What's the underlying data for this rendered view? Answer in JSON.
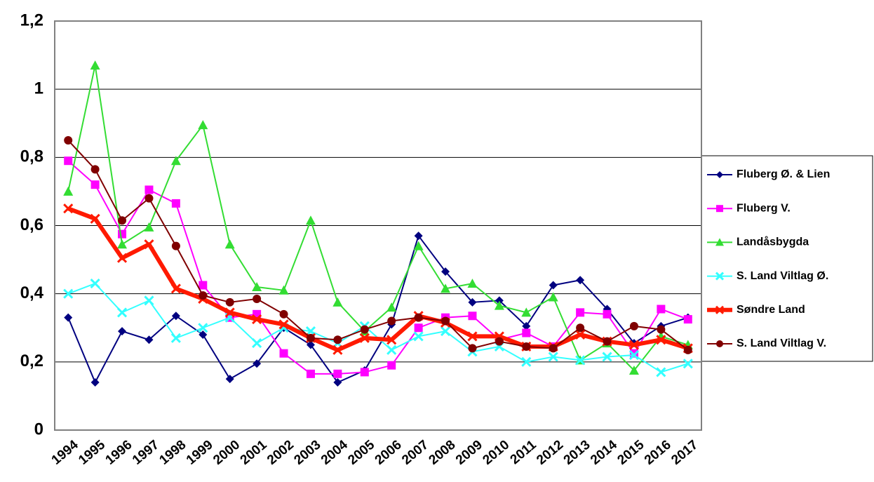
{
  "chart_data": {
    "type": "line",
    "categories": [
      "1994",
      "1995",
      "1996",
      "1997",
      "1998",
      "1999",
      "2000",
      "2001",
      "2002",
      "2003",
      "2004",
      "2005",
      "2006",
      "2007",
      "2008",
      "2009",
      "2010",
      "2011",
      "2012",
      "2013",
      "2014",
      "2015",
      "2016",
      "2017"
    ],
    "ylim": [
      0,
      1.2
    ],
    "yticks": [
      0,
      {
        "value": 0.2,
        "label": "0,2"
      },
      {
        "value": 0.4,
        "label": "0,4"
      },
      {
        "value": 0.6,
        "label": "0,6"
      },
      {
        "value": 0.8,
        "label": "0,8"
      },
      1,
      {
        "value": 1.2,
        "label": "1,2"
      }
    ],
    "grid": true,
    "legend": "right",
    "series": [
      {
        "name": "Fluberg Ø. & Lien",
        "color": "#000080",
        "marker": "diamond",
        "line_width": 2,
        "values": [
          0.33,
          0.14,
          0.29,
          0.265,
          0.335,
          0.28,
          0.15,
          0.195,
          0.3,
          0.25,
          0.14,
          0.175,
          0.31,
          0.57,
          0.465,
          0.375,
          0.38,
          0.305,
          0.425,
          0.44,
          0.355,
          0.255,
          0.305,
          0.33
        ]
      },
      {
        "name": "Fluberg V.",
        "color": "#ff00ff",
        "marker": "square",
        "line_width": 2,
        "values": [
          0.79,
          0.72,
          0.575,
          0.705,
          0.665,
          0.425,
          0.33,
          0.34,
          0.225,
          0.165,
          0.165,
          0.17,
          0.19,
          0.3,
          0.33,
          0.335,
          0.265,
          0.285,
          0.245,
          0.345,
          0.34,
          0.225,
          0.355,
          0.325
        ]
      },
      {
        "name": "Landåsbygda",
        "color": "#33dd33",
        "marker": "triangle",
        "line_width": 2,
        "values": [
          0.7,
          1.07,
          0.545,
          0.595,
          0.79,
          0.895,
          0.545,
          0.42,
          0.41,
          0.615,
          0.375,
          0.29,
          0.36,
          0.54,
          0.415,
          0.43,
          0.365,
          0.345,
          0.39,
          0.205,
          0.255,
          0.175,
          0.275,
          0.25
        ]
      },
      {
        "name": "S. Land Viltlag Ø.",
        "color": "#33ffff",
        "marker": "x",
        "line_width": 2,
        "values": [
          0.4,
          0.43,
          0.345,
          0.38,
          0.27,
          0.3,
          0.33,
          0.255,
          0.3,
          0.29,
          0.255,
          0.305,
          0.235,
          0.275,
          0.29,
          0.23,
          0.245,
          0.2,
          0.215,
          0.205,
          0.215,
          0.22,
          0.17,
          0.195
        ]
      },
      {
        "name": "Søndre Land",
        "color": "#ff1a00",
        "marker": "x",
        "line_width": 6,
        "values": [
          0.65,
          0.62,
          0.505,
          0.545,
          0.415,
          0.385,
          0.345,
          0.325,
          0.31,
          0.27,
          0.235,
          0.27,
          0.265,
          0.335,
          0.315,
          0.275,
          0.275,
          0.245,
          0.245,
          0.28,
          0.26,
          0.25,
          0.265,
          0.24
        ]
      },
      {
        "name": "S. Land Viltlag V.",
        "color": "#800000",
        "marker": "circle",
        "line_width": 2,
        "values": [
          0.85,
          0.765,
          0.615,
          0.68,
          0.54,
          0.395,
          0.375,
          0.385,
          0.34,
          0.27,
          0.265,
          0.295,
          0.32,
          0.33,
          0.32,
          0.24,
          0.26,
          0.245,
          0.24,
          0.3,
          0.26,
          0.305,
          0.295,
          0.235
        ]
      }
    ]
  }
}
